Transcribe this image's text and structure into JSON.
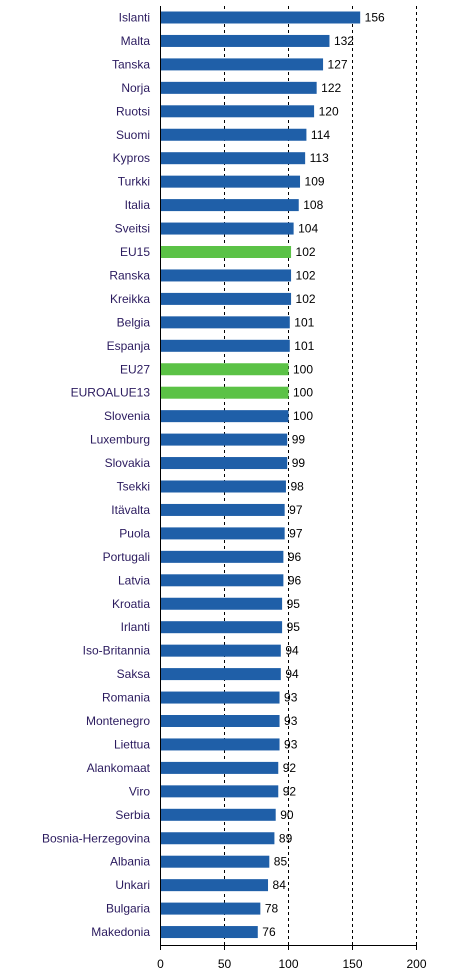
{
  "chart_data": {
    "type": "bar",
    "orientation": "horizontal",
    "title": "",
    "xlabel": "",
    "ylabel": "",
    "xlim": [
      0,
      200
    ],
    "xticks": [
      0,
      50,
      100,
      150,
      200
    ],
    "grid": "vertical dashed",
    "colors": {
      "default": "#1F5FA8",
      "highlight": "#5BC246",
      "label_text": "#2A1A5E",
      "grid": "#000000"
    },
    "categories": [
      "Islanti",
      "Malta",
      "Tanska",
      "Norja",
      "Ruotsi",
      "Suomi",
      "Kypros",
      "Turkki",
      "Italia",
      "Sveitsi",
      "EU15",
      "Ranska",
      "Kreikka",
      "Belgia",
      "Espanja",
      "EU27",
      "EUROALUE13",
      "Slovenia",
      "Luxemburg",
      "Slovakia",
      "Tsekki",
      "Itävalta",
      "Puola",
      "Portugali",
      "Latvia",
      "Kroatia",
      "Irlanti",
      "Iso-Britannia",
      "Saksa",
      "Romania",
      "Montenegro",
      "Liettua",
      "Alankomaat",
      "Viro",
      "Serbia",
      "Bosnia-Herzegovina",
      "Albania",
      "Unkari",
      "Bulgaria",
      "Makedonia"
    ],
    "values": [
      156,
      132,
      127,
      122,
      120,
      114,
      113,
      109,
      108,
      104,
      102,
      102,
      102,
      101,
      101,
      100,
      100,
      100,
      99,
      99,
      98,
      97,
      97,
      96,
      96,
      95,
      95,
      94,
      94,
      93,
      93,
      93,
      92,
      92,
      90,
      89,
      85,
      84,
      78,
      76
    ],
    "highlighted": [
      "EU15",
      "EU27",
      "EUROALUE13"
    ]
  }
}
